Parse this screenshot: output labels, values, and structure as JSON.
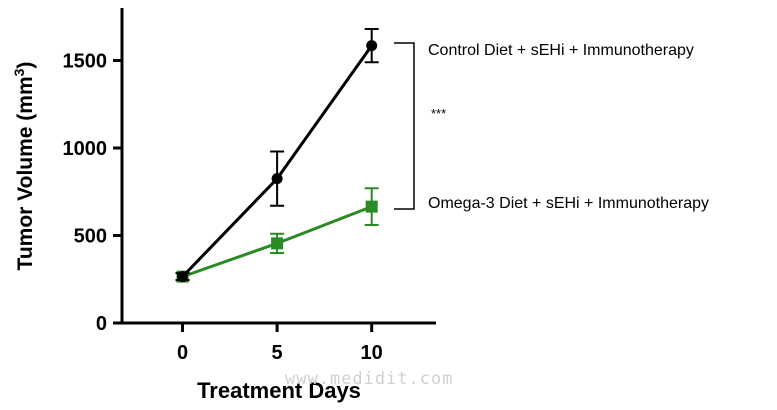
{
  "watermark": "www.medidit.com",
  "significance": "***",
  "chart_data": {
    "type": "line",
    "xlabel": "Treatment Days",
    "ylabel": "Tumor Volume (mm",
    "ylabel_sup": "3",
    "ylabel_close": ")",
    "x_ticks": [
      "0",
      "5",
      "10"
    ],
    "y_ticks": [
      "0",
      "500",
      "1000",
      "1500"
    ],
    "xlim": [
      -3.2,
      13.4
    ],
    "ylim": [
      0,
      1800
    ],
    "x": [
      0,
      5,
      10
    ],
    "series": [
      {
        "name": "Control Diet + sEHi + Immunotherapy",
        "marker": "circle",
        "color": "#000000",
        "values": [
          265,
          825,
          1585
        ],
        "errors": [
          20,
          155,
          95
        ]
      },
      {
        "name": "Omega-3 Diet + sEHi + Immunotherapy",
        "marker": "square",
        "color": "#2a8a23",
        "values": [
          265,
          455,
          665
        ],
        "errors": [
          20,
          55,
          105
        ]
      }
    ]
  }
}
